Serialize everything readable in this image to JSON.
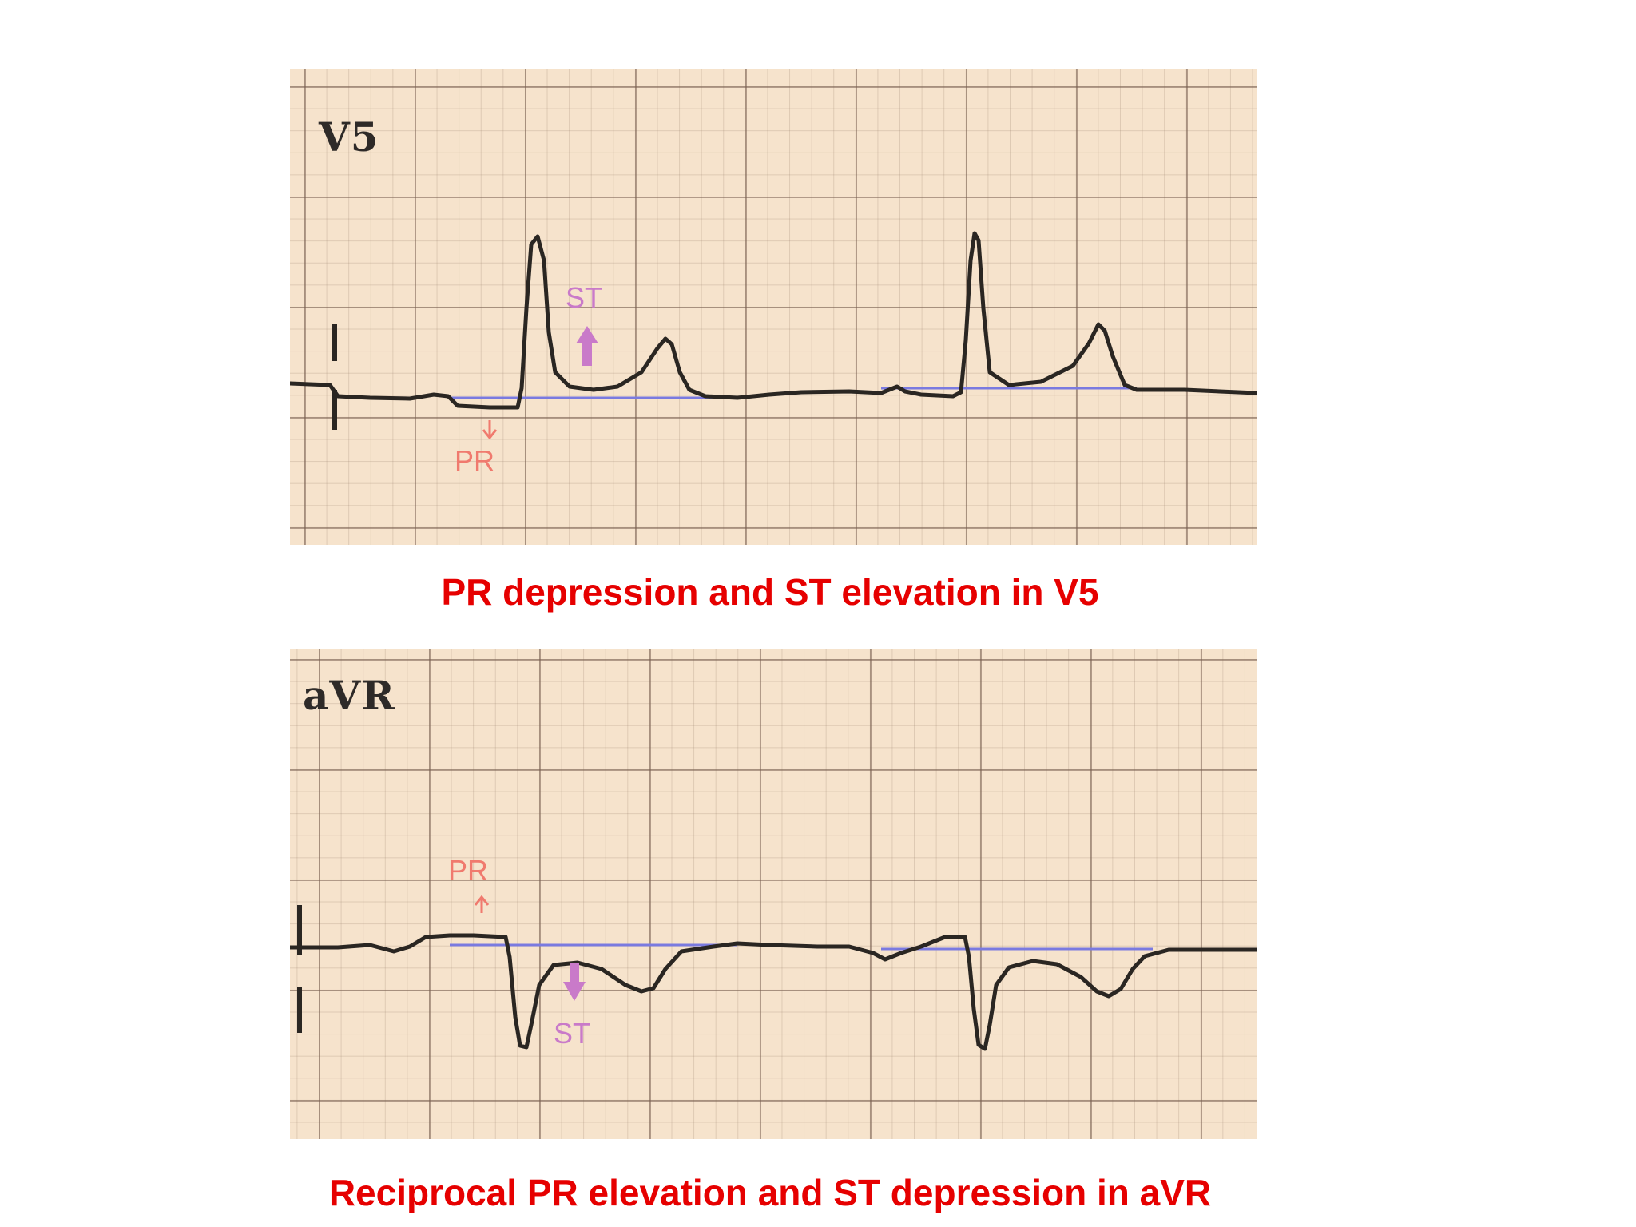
{
  "panels": [
    {
      "lead": "V5",
      "caption": "PR depression and ST elevation in V5",
      "annotations": {
        "st": "ST",
        "pr": "PR"
      }
    },
    {
      "lead": "aVR",
      "caption": "Reciprocal PR elevation and ST depression in aVR",
      "annotations": {
        "st": "ST",
        "pr": "PR"
      }
    }
  ],
  "colors": {
    "paper": "#f6e3cc",
    "trace": "#2a2622",
    "baseline": "#7a7ae0",
    "st_marker": "#c97ac9",
    "pr_marker": "#f07a6e",
    "caption": "#e60000"
  }
}
